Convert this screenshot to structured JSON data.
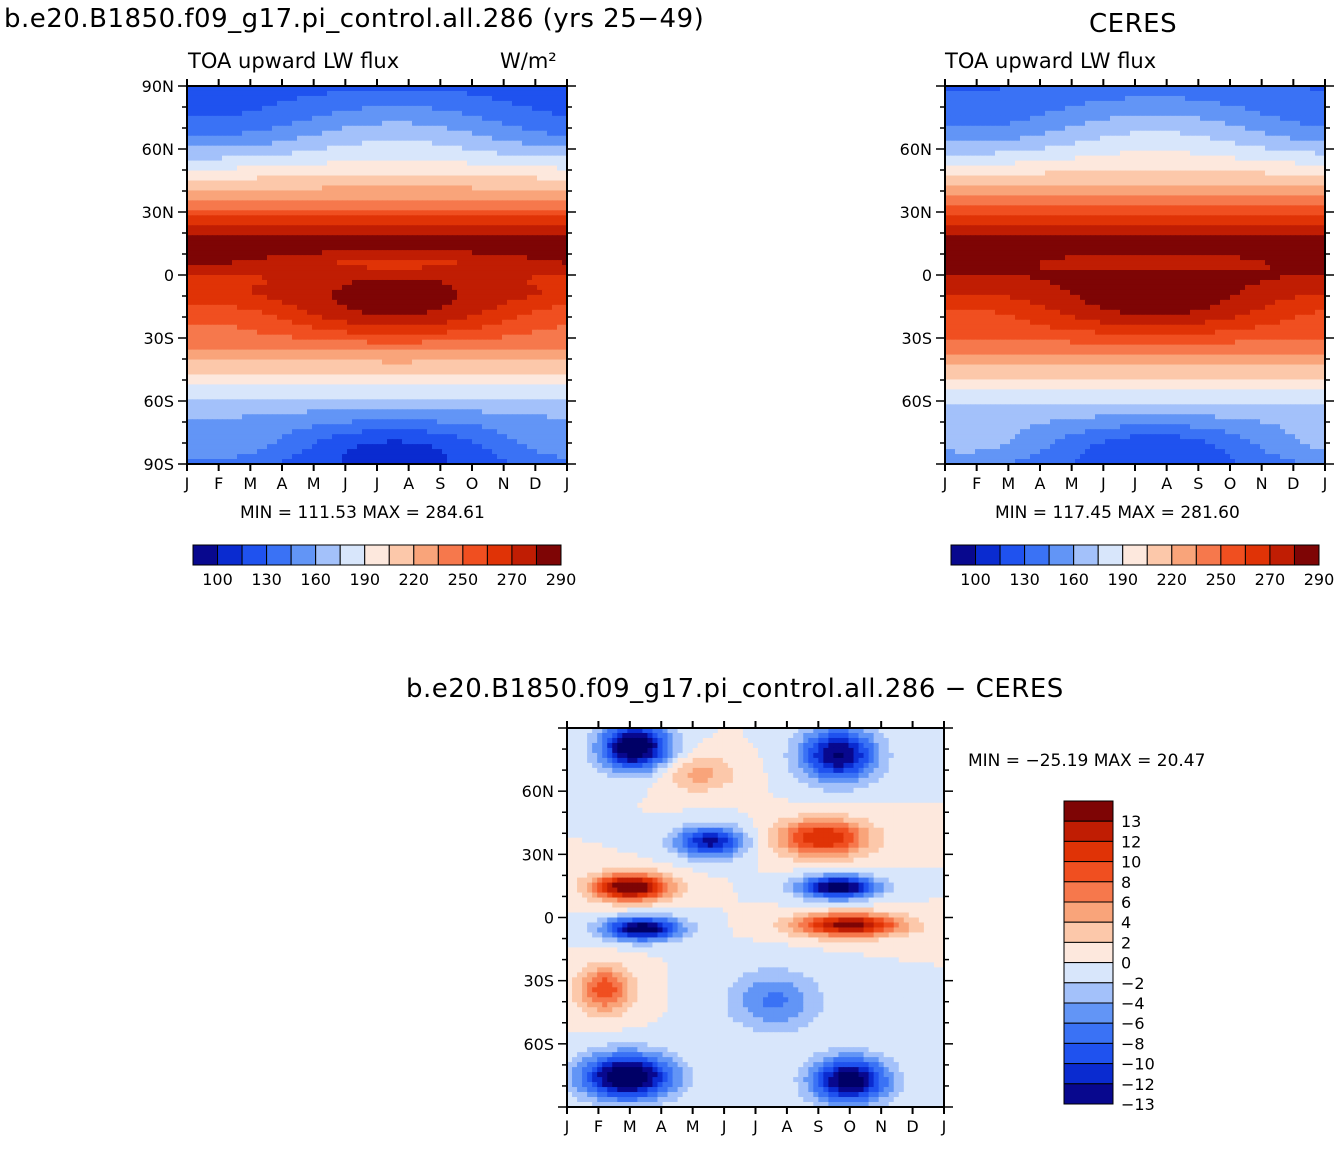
{
  "page": {
    "panel1_title": "b.e20.B1850.f09_g17.pi_control.all.286 (yrs 25−49)",
    "panel2_title": "CERES",
    "panel3_title": "b.e20.B1850.f09_g17.pi_control.all.286 − CERES"
  },
  "chart_data": [
    {
      "type": "heatmap",
      "title": "b.e20.B1850.f09_g17.pi_control.all.286 (yrs 25−49)",
      "subtitle_left": "TOA upward LW flux",
      "units": "W/m²",
      "x_ticks": [
        "J",
        "F",
        "M",
        "A",
        "M",
        "J",
        "J",
        "A",
        "S",
        "O",
        "N",
        "D",
        "J"
      ],
      "y_ticks": [
        "90N",
        "60N",
        "30N",
        "0",
        "30S",
        "60S",
        "90S"
      ],
      "ylim": [
        -90,
        90
      ],
      "stats": "MIN = 111.53 MAX = 284.61",
      "colorbar_labels": [
        "100",
        "130",
        "160",
        "190",
        "220",
        "250",
        "270",
        "290"
      ],
      "colorbar_colors": [
        "#08088e",
        "#0a2bd0",
        "#1f52ef",
        "#3a72f5",
        "#6295f6",
        "#a3c1fa",
        "#d8e6fb",
        "#fde8dd",
        "#fcc8aa",
        "#f9a47a",
        "#f6784c",
        "#f04f20",
        "#e03306",
        "#c01d03",
        "#7e0505"
      ],
      "annotations": []
    },
    {
      "type": "heatmap",
      "title": "CERES",
      "subtitle_left": "TOA upward LW flux",
      "x_ticks": [
        "J",
        "F",
        "M",
        "A",
        "M",
        "J",
        "J",
        "A",
        "S",
        "O",
        "N",
        "D",
        "J"
      ],
      "y_ticks": [
        "60N",
        "30N",
        "0",
        "30S",
        "60S"
      ],
      "ylim": [
        -90,
        90
      ],
      "stats": "MIN = 117.45 MAX = 281.60",
      "colorbar_labels": [
        "100",
        "130",
        "160",
        "190",
        "220",
        "250",
        "270",
        "290"
      ],
      "colorbar_colors": [
        "#08088e",
        "#0a2bd0",
        "#1f52ef",
        "#3a72f5",
        "#6295f6",
        "#a3c1fa",
        "#d8e6fb",
        "#fde8dd",
        "#fcc8aa",
        "#f9a47a",
        "#f6784c",
        "#f04f20",
        "#e03306",
        "#c01d03",
        "#7e0505"
      ]
    },
    {
      "type": "heatmap",
      "title": "b.e20.B1850.f09_g17.pi_control.all.286 − CERES",
      "x_ticks": [
        "J",
        "F",
        "M",
        "A",
        "M",
        "J",
        "J",
        "A",
        "S",
        "O",
        "N",
        "D",
        "J"
      ],
      "y_ticks": [
        "60N",
        "30N",
        "0",
        "30S",
        "60S"
      ],
      "ylim": [
        -90,
        90
      ],
      "stats": "MIN = −25.19 MAX =  20.47",
      "colorbar_labels": [
        "13",
        "12",
        "10",
        "8",
        "6",
        "4",
        "2",
        "0",
        "−2",
        "−4",
        "−6",
        "−8",
        "−10",
        "−12",
        "−13"
      ],
      "colorbar_colors": [
        "#7e0505",
        "#c01d03",
        "#e03306",
        "#f04f20",
        "#f6784c",
        "#f9a47a",
        "#fcc8aa",
        "#fde8dd",
        "#d8e6fb",
        "#a3c1fa",
        "#6295f6",
        "#3a72f5",
        "#1f52ef",
        "#0a2bd0",
        "#08088e",
        "#000066"
      ]
    }
  ]
}
